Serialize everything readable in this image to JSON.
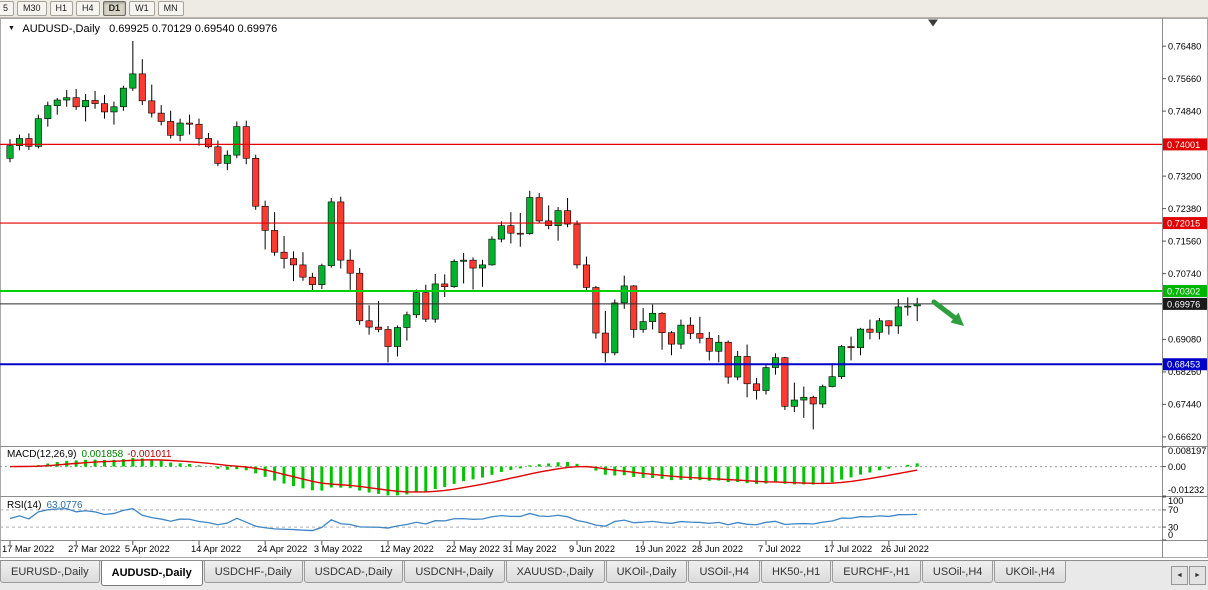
{
  "icons": {
    "dropdown": "▼",
    "tab_left": "◄",
    "tab_right": "►"
  },
  "toolbar": {
    "timeframes": [
      "5",
      "M30",
      "H1",
      "H4",
      "D1",
      "W1",
      "MN"
    ],
    "active": "D1"
  },
  "chart": {
    "symbol": "AUDUSD-,Daily",
    "ohlc": "0.69925 0.70129 0.69540 0.69976"
  },
  "price_axis": {
    "gridline_labels": [
      "0.76480",
      "0.75660",
      "0.74840",
      "0.73200",
      "0.72380",
      "0.71560",
      "0.70740",
      "0.69080",
      "0.68260",
      "0.67440",
      "0.66620"
    ],
    "badges": [
      {
        "text": "0.74001",
        "price": 0.74001,
        "color": "#e00000"
      },
      {
        "text": "0.72015",
        "price": 0.72015,
        "color": "#e00000"
      },
      {
        "text": "0.70302",
        "price": 0.70302,
        "color": "#00b400"
      },
      {
        "text": "0.69976",
        "price": 0.69976,
        "color": "#1a1a1a"
      },
      {
        "text": "0.68453",
        "price": 0.68453,
        "color": "#0000c8"
      }
    ]
  },
  "hlines": [
    {
      "price": 0.74001,
      "color": "#e00000",
      "width": 1.2
    },
    {
      "price": 0.72015,
      "color": "#e00000",
      "width": 1.2
    },
    {
      "price": 0.70302,
      "color": "#00d200",
      "width": 2
    },
    {
      "price": 0.69976,
      "color": "#2a2a2a",
      "width": 1
    },
    {
      "price": 0.68453,
      "color": "#0000c8",
      "width": 2
    }
  ],
  "macd": {
    "name": "MACD(12,26,9)",
    "value_main": "0.001858",
    "value_signal": "-0.001011",
    "axis_labels": [
      "0.008197",
      "0.00",
      "-0.01232"
    ],
    "axis_values": [
      0.008197,
      0,
      -0.01232
    ],
    "bar_color": "#00c400",
    "signal_color": "#e00000"
  },
  "rsi": {
    "name": "RSI(14)",
    "value": "63.0776",
    "axis_labels": [
      "100",
      "70",
      "30",
      "0"
    ],
    "axis_values": [
      100,
      70,
      30,
      0
    ],
    "levels": [
      70,
      30
    ],
    "line_color": "#3e86c6"
  },
  "date_axis": {
    "labels": [
      "17 Mar 2022",
      "27 Mar 2022",
      "5 Apr 2022",
      "14 Apr 2022",
      "24 Apr 2022",
      "3 May 2022",
      "12 May 2022",
      "22 May 2022",
      "31 May 2022",
      "9 Jun 2022",
      "19 Jun 2022",
      "28 Jun 2022",
      "7 Jul 2022",
      "17 Jul 2022",
      "26 Jul 2022"
    ],
    "indices": [
      0,
      7,
      13,
      20,
      27,
      33,
      40,
      47,
      53,
      60,
      67,
      73,
      80,
      87,
      93
    ]
  },
  "tabs": {
    "items": [
      "EURUSD-,Daily",
      "AUDUSD-,Daily",
      "USDCHF-,Daily",
      "USDCAD-,Daily",
      "USDCNH-,Daily",
      "XAUUSD-,Daily",
      "UKOil-,Daily",
      "USOil-,H4",
      "HK50-,H1",
      "EURCHF-,H1",
      "USOil-,H4",
      "UKOil-,H4"
    ],
    "active_index": 1
  },
  "annotations": {
    "arrow_color": "#2e9e3f",
    "shift_marker_color": "#3c3c3c"
  },
  "chart_data": {
    "type": "candlestick",
    "symbol": "AUDUSD",
    "period": "Daily",
    "title": "AUDUSD-,Daily 0.69925 0.70129 0.69540 0.69976",
    "y_range": [
      0.6639,
      0.7719
    ],
    "bull_color": "#00b22d",
    "bear_color": "#fb3a30",
    "wick_color": "#000000",
    "candles": [
      [
        0.7365,
        0.7413,
        0.7355,
        0.7397
      ],
      [
        0.7397,
        0.7425,
        0.7385,
        0.7415
      ],
      [
        0.7415,
        0.7428,
        0.7386,
        0.7395
      ],
      [
        0.7395,
        0.7475,
        0.739,
        0.7465
      ],
      [
        0.7465,
        0.7508,
        0.7445,
        0.7498
      ],
      [
        0.7498,
        0.7517,
        0.7475,
        0.7512
      ],
      [
        0.7512,
        0.7537,
        0.7495,
        0.7518
      ],
      [
        0.7518,
        0.754,
        0.7487,
        0.7495
      ],
      [
        0.7495,
        0.7527,
        0.7458,
        0.7511
      ],
      [
        0.7511,
        0.7535,
        0.749,
        0.7503
      ],
      [
        0.7503,
        0.7525,
        0.7465,
        0.7482
      ],
      [
        0.7482,
        0.7508,
        0.745,
        0.7495
      ],
      [
        0.7495,
        0.7548,
        0.7485,
        0.7542
      ],
      [
        0.7542,
        0.7661,
        0.7535,
        0.7578
      ],
      [
        0.7578,
        0.7615,
        0.7499,
        0.751
      ],
      [
        0.751,
        0.7551,
        0.7468,
        0.7479
      ],
      [
        0.7479,
        0.7499,
        0.7448,
        0.7458
      ],
      [
        0.7458,
        0.7485,
        0.7415,
        0.7423
      ],
      [
        0.7423,
        0.7465,
        0.7408,
        0.7454
      ],
      [
        0.7454,
        0.7475,
        0.7425,
        0.7451
      ],
      [
        0.7451,
        0.7465,
        0.7397,
        0.7415
      ],
      [
        0.7415,
        0.7429,
        0.739,
        0.7394
      ],
      [
        0.7394,
        0.741,
        0.7345,
        0.7352
      ],
      [
        0.7352,
        0.7385,
        0.7335,
        0.7373
      ],
      [
        0.7373,
        0.7458,
        0.7365,
        0.7445
      ],
      [
        0.7445,
        0.746,
        0.735,
        0.7365
      ],
      [
        0.7365,
        0.7374,
        0.7235,
        0.7244
      ],
      [
        0.7244,
        0.7258,
        0.7135,
        0.7183
      ],
      [
        0.7183,
        0.7229,
        0.7119,
        0.7128
      ],
      [
        0.7128,
        0.7169,
        0.7087,
        0.7112
      ],
      [
        0.7112,
        0.713,
        0.7055,
        0.7096
      ],
      [
        0.7096,
        0.7128,
        0.7056,
        0.7065
      ],
      [
        0.7065,
        0.7076,
        0.7029,
        0.7046
      ],
      [
        0.7046,
        0.7099,
        0.7035,
        0.7094
      ],
      [
        0.7094,
        0.7265,
        0.7089,
        0.7255
      ],
      [
        0.7255,
        0.7268,
        0.7087,
        0.7108
      ],
      [
        0.7108,
        0.7135,
        0.7033,
        0.7075
      ],
      [
        0.7075,
        0.7088,
        0.6945,
        0.6955
      ],
      [
        0.6955,
        0.6994,
        0.692,
        0.6939
      ],
      [
        0.6939,
        0.7005,
        0.6926,
        0.6933
      ],
      [
        0.6933,
        0.6942,
        0.685,
        0.689
      ],
      [
        0.689,
        0.6943,
        0.6865,
        0.6938
      ],
      [
        0.6938,
        0.6978,
        0.6905,
        0.697
      ],
      [
        0.697,
        0.7034,
        0.6962,
        0.7026
      ],
      [
        0.7026,
        0.7046,
        0.6952,
        0.6959
      ],
      [
        0.6959,
        0.7073,
        0.695,
        0.7048
      ],
      [
        0.7048,
        0.7072,
        0.7015,
        0.7041
      ],
      [
        0.7041,
        0.711,
        0.7038,
        0.7105
      ],
      [
        0.7105,
        0.7126,
        0.7049,
        0.7108
      ],
      [
        0.7108,
        0.7115,
        0.7034,
        0.7088
      ],
      [
        0.7088,
        0.7109,
        0.7041,
        0.7096
      ],
      [
        0.7096,
        0.7168,
        0.7094,
        0.7161
      ],
      [
        0.7161,
        0.7206,
        0.7153,
        0.7195
      ],
      [
        0.7195,
        0.7229,
        0.715,
        0.7176
      ],
      [
        0.7176,
        0.7227,
        0.7142,
        0.7175
      ],
      [
        0.7175,
        0.7283,
        0.7172,
        0.7266
      ],
      [
        0.7266,
        0.7277,
        0.7203,
        0.7207
      ],
      [
        0.7207,
        0.7246,
        0.7186,
        0.7195
      ],
      [
        0.7195,
        0.7242,
        0.7157,
        0.7233
      ],
      [
        0.7233,
        0.7265,
        0.7191,
        0.7199
      ],
      [
        0.7199,
        0.7208,
        0.7087,
        0.7096
      ],
      [
        0.7096,
        0.7117,
        0.7033,
        0.7039
      ],
      [
        0.7039,
        0.7043,
        0.691,
        0.6924
      ],
      [
        0.6924,
        0.698,
        0.685,
        0.6874
      ],
      [
        0.6874,
        0.7009,
        0.6868,
        0.7
      ],
      [
        0.7,
        0.7069,
        0.6985,
        0.7043
      ],
      [
        0.7043,
        0.7045,
        0.6912,
        0.6933
      ],
      [
        0.6933,
        0.6987,
        0.6925,
        0.6953
      ],
      [
        0.6953,
        0.6996,
        0.6933,
        0.6974
      ],
      [
        0.6974,
        0.6977,
        0.6882,
        0.6925
      ],
      [
        0.6925,
        0.6929,
        0.6868,
        0.6896
      ],
      [
        0.6896,
        0.6958,
        0.6884,
        0.6944
      ],
      [
        0.6944,
        0.6964,
        0.6909,
        0.6923
      ],
      [
        0.6923,
        0.6965,
        0.6898,
        0.6911
      ],
      [
        0.6911,
        0.6927,
        0.6855,
        0.6878
      ],
      [
        0.6878,
        0.6919,
        0.685,
        0.6901
      ],
      [
        0.6901,
        0.6905,
        0.6796,
        0.6813
      ],
      [
        0.6813,
        0.6879,
        0.6805,
        0.6865
      ],
      [
        0.6865,
        0.6895,
        0.6762,
        0.6796
      ],
      [
        0.6796,
        0.6811,
        0.6756,
        0.6779
      ],
      [
        0.6779,
        0.6843,
        0.6769,
        0.6837
      ],
      [
        0.6837,
        0.6873,
        0.6819,
        0.6862
      ],
      [
        0.6862,
        0.6864,
        0.673,
        0.6739
      ],
      [
        0.6739,
        0.6799,
        0.6725,
        0.6755
      ],
      [
        0.6755,
        0.6789,
        0.671,
        0.6762
      ],
      [
        0.6762,
        0.6766,
        0.6681,
        0.6745
      ],
      [
        0.6745,
        0.6794,
        0.6735,
        0.6789
      ],
      [
        0.6789,
        0.6848,
        0.6787,
        0.6814
      ],
      [
        0.6814,
        0.6894,
        0.6808,
        0.689
      ],
      [
        0.689,
        0.6915,
        0.6855,
        0.6887
      ],
      [
        0.6887,
        0.6937,
        0.6868,
        0.6934
      ],
      [
        0.6934,
        0.6958,
        0.6908,
        0.6926
      ],
      [
        0.6926,
        0.6962,
        0.6908,
        0.6955
      ],
      [
        0.6955,
        0.6956,
        0.692,
        0.6942
      ],
      [
        0.6942,
        0.701,
        0.6922,
        0.699
      ],
      [
        0.699,
        0.7014,
        0.6968,
        0.6992
      ],
      [
        0.69925,
        0.70129,
        0.6954,
        0.69976
      ]
    ]
  }
}
